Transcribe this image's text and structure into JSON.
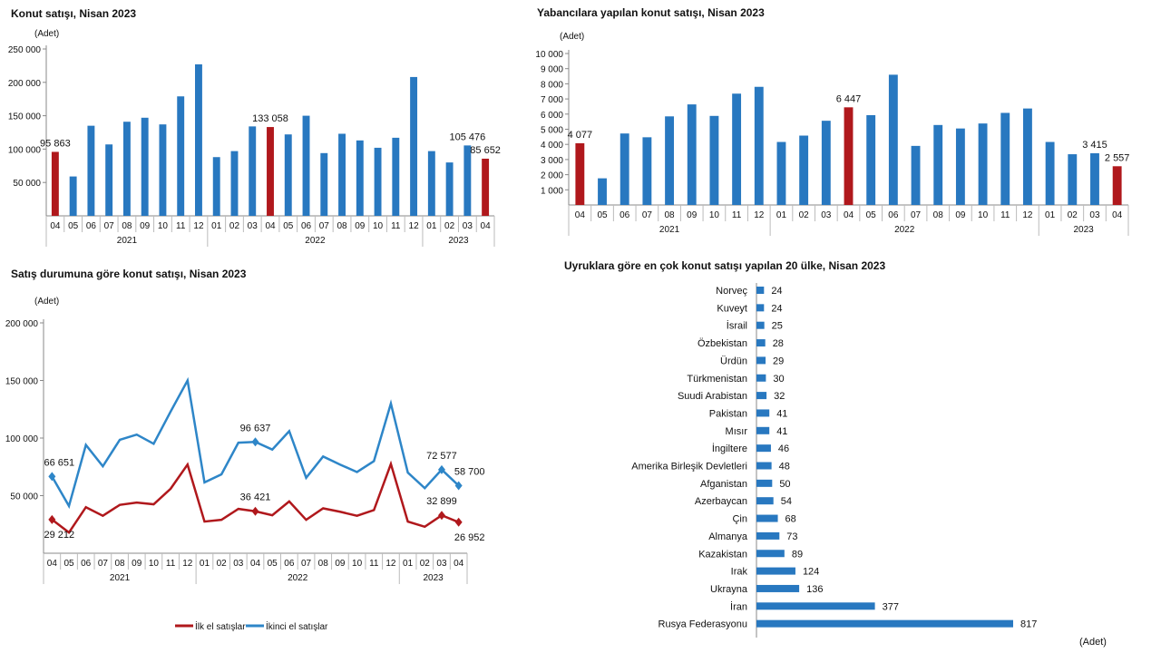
{
  "chart_data": [
    {
      "type": "bar",
      "title": "Konut satışı, Nisan 2023",
      "ylabel": "(Adet)",
      "ylim": [
        0,
        250000
      ],
      "yticks": [
        "50 000",
        "100 000",
        "150 000",
        "200 000",
        "250 000"
      ],
      "ytick_values": [
        50000,
        100000,
        150000,
        200000,
        250000
      ],
      "categories": [
        "04",
        "05",
        "06",
        "07",
        "08",
        "09",
        "10",
        "11",
        "12",
        "01",
        "02",
        "03",
        "04",
        "05",
        "06",
        "07",
        "08",
        "09",
        "10",
        "11",
        "12",
        "01",
        "02",
        "03",
        "04"
      ],
      "years": [
        {
          "label": "2021",
          "count": 9
        },
        {
          "label": "2022",
          "count": 12
        },
        {
          "label": "2023",
          "count": 4
        }
      ],
      "values": [
        95863,
        59000,
        135000,
        107000,
        141000,
        147000,
        137000,
        179000,
        227000,
        88000,
        97000,
        134000,
        133058,
        122000,
        150000,
        94000,
        123000,
        113000,
        102000,
        117000,
        208000,
        97000,
        80000,
        105476,
        85652
      ],
      "highlight": [
        0,
        12,
        24
      ],
      "data_labels": {
        "0": "95 863",
        "12": "133 058",
        "23": "105 476",
        "24": "85 652"
      },
      "colors": {
        "bar": "#2878c0",
        "highlight": "#b0181c"
      }
    },
    {
      "type": "bar",
      "title": "Yabancılara yapılan konut satışı, Nisan 2023",
      "ylabel": "(Adet)",
      "ylim": [
        0,
        10000
      ],
      "yticks": [
        "1 000",
        "2 000",
        "3 000",
        "4 000",
        "5 000",
        "6 000",
        "7 000",
        "8 000",
        "9 000",
        "10 000"
      ],
      "ytick_values": [
        1000,
        2000,
        3000,
        4000,
        5000,
        6000,
        7000,
        8000,
        9000,
        10000
      ],
      "categories": [
        "04",
        "05",
        "06",
        "07",
        "08",
        "09",
        "10",
        "11",
        "12",
        "01",
        "02",
        "03",
        "04",
        "05",
        "06",
        "07",
        "08",
        "09",
        "10",
        "11",
        "12",
        "01",
        "02",
        "03",
        "04"
      ],
      "years": [
        {
          "label": "2021",
          "count": 9
        },
        {
          "label": "2022",
          "count": 12
        },
        {
          "label": "2023",
          "count": 4
        }
      ],
      "values": [
        4077,
        1760,
        4720,
        4470,
        5850,
        6640,
        5880,
        7350,
        7800,
        4160,
        4580,
        5560,
        6447,
        5930,
        8600,
        3900,
        5280,
        5050,
        5380,
        6080,
        6370,
        4160,
        3350,
        3415,
        2557
      ],
      "highlight": [
        0,
        12,
        24
      ],
      "data_labels": {
        "0": "4 077",
        "12": "6 447",
        "23": "3 415",
        "24": "2 557"
      },
      "colors": {
        "bar": "#2878c0",
        "highlight": "#b0181c"
      }
    },
    {
      "type": "line",
      "title": "Satış durumuna göre konut satışı, Nisan 2023",
      "ylabel": "(Adet)",
      "ylim": [
        0,
        200000
      ],
      "yticks": [
        "50 000",
        "100 000",
        "150 000",
        "200 000"
      ],
      "ytick_values": [
        50000,
        100000,
        150000,
        200000
      ],
      "categories": [
        "04",
        "05",
        "06",
        "07",
        "08",
        "09",
        "10",
        "11",
        "12",
        "01",
        "02",
        "03",
        "04",
        "05",
        "06",
        "07",
        "08",
        "09",
        "10",
        "11",
        "12",
        "01",
        "02",
        "03",
        "04"
      ],
      "years": [
        {
          "label": "2021",
          "count": 9
        },
        {
          "label": "2022",
          "count": 12
        },
        {
          "label": "2023",
          "count": 4
        }
      ],
      "legend_position": "bottom",
      "series": [
        {
          "name": "İlk el satışlar",
          "color": "#b0181c",
          "values": [
            29212,
            18000,
            40000,
            32500,
            42000,
            44000,
            42500,
            56000,
            77000,
            27500,
            29000,
            38500,
            36421,
            33000,
            45000,
            29000,
            39000,
            36000,
            32500,
            37500,
            77500,
            27500,
            23000,
            32899,
            26952
          ],
          "markers": [
            0,
            12,
            23,
            24
          ],
          "data_labels": {
            "0": "29 212",
            "12": "36 421",
            "23": "32 899",
            "24": "26 952"
          }
        },
        {
          "name": "İkinci el satışlar",
          "color": "#2e86c8",
          "values": [
            66651,
            41000,
            94000,
            75500,
            98500,
            103000,
            95000,
            123000,
            150000,
            61500,
            68500,
            96000,
            96637,
            90000,
            106000,
            65500,
            84000,
            77000,
            70500,
            80000,
            130000,
            70000,
            56500,
            72577,
            58700
          ],
          "markers": [
            0,
            12,
            23,
            24
          ],
          "data_labels": {
            "0": "66 651",
            "12": "96 637",
            "23": "72 577",
            "24": "58 700"
          }
        }
      ]
    },
    {
      "type": "bar",
      "orientation": "horizontal",
      "title": "Uyruklara göre en çok konut satışı yapılan 20 ülke, Nisan 2023",
      "xlabel": "(Adet)",
      "categories": [
        "Norveç",
        "Kuveyt",
        "İsrail",
        "Özbekistan",
        "Ürdün",
        "Türkmenistan",
        "Suudi Arabistan",
        "Pakistan",
        "Mısır",
        "İngiltere",
        "Amerika Birleşik Devletleri",
        "Afganistan",
        "Azerbaycan",
        "Çin",
        "Almanya",
        "Kazakistan",
        "Irak",
        "Ukrayna",
        "İran",
        "Rusya Federasyonu"
      ],
      "values": [
        24,
        24,
        25,
        28,
        29,
        30,
        32,
        41,
        41,
        46,
        48,
        50,
        54,
        68,
        73,
        89,
        124,
        136,
        377,
        817
      ],
      "colors": {
        "bar": "#2878c0"
      }
    }
  ]
}
